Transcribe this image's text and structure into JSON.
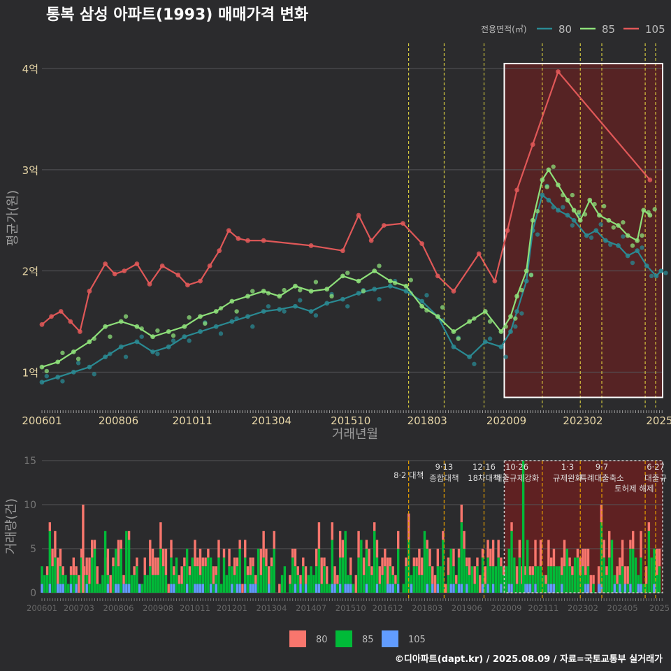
{
  "title": "통복 삼성 아파트(1993) 매매가격 변화",
  "legend_title": "전용면적(㎡)",
  "footer": "©디아파트(dapt.kr) / 2025.08.09 / 자료=국토교통부 실거래가",
  "colors": {
    "s80": "#2a8a93",
    "s85": "#8ee07a",
    "s105": "#e05858",
    "bar80": "#f8766d",
    "bar85": "#00ba38",
    "bar105": "#619cff",
    "policy": "#f0e442",
    "highlight": "#8b1a1a"
  },
  "chart_data": [
    {
      "type": "line",
      "title": "통복 삼성 아파트(1993) 매매가격 변화",
      "xlabel": "거래년월",
      "ylabel": "평균가(원)",
      "x_range": [
        2006.0,
        2025.6
      ],
      "ylim": [
        0.65,
        4.25
      ],
      "y_ticks": [
        {
          "v": 1,
          "label": "1억"
        },
        {
          "v": 2,
          "label": "2억"
        },
        {
          "v": 3,
          "label": "3억"
        },
        {
          "v": 4,
          "label": "4억"
        }
      ],
      "x_ticks": [
        {
          "v": 2006.0,
          "label": "200601"
        },
        {
          "v": 2008.417,
          "label": "200806"
        },
        {
          "v": 2010.75,
          "label": "201011"
        },
        {
          "v": 2013.25,
          "label": "201304"
        },
        {
          "v": 2015.75,
          "label": "201510"
        },
        {
          "v": 2018.167,
          "label": "201803"
        },
        {
          "v": 2020.667,
          "label": "202009"
        },
        {
          "v": 2023.083,
          "label": "202302"
        },
        {
          "v": 2025.5,
          "label": "2025"
        }
      ],
      "policy_lines": [
        2017.58,
        2018.7,
        2019.96,
        2021.8,
        2023.0,
        2023.68,
        2025.05,
        2025.38
      ],
      "highlight_range": [
        2020.6,
        2025.6
      ],
      "highlight_y": [
        0.75,
        4.05
      ],
      "series": [
        {
          "name": "80",
          "x": [
            2006.0,
            2006.5,
            2007.0,
            2007.5,
            2008.0,
            2008.5,
            2009.0,
            2009.5,
            2010.0,
            2010.5,
            2011.0,
            2011.5,
            2012.0,
            2012.5,
            2013.0,
            2013.5,
            2014.0,
            2014.5,
            2015.0,
            2015.5,
            2016.0,
            2016.5,
            2017.0,
            2017.5,
            2018.0,
            2018.5,
            2019.0,
            2019.5,
            2020.0,
            2020.5,
            2020.8,
            2021.0,
            2021.3,
            2021.5,
            2021.8,
            2022.0,
            2022.3,
            2022.6,
            2022.8,
            2023.2,
            2023.5,
            2023.8,
            2024.2,
            2024.5,
            2024.8,
            2025.1,
            2025.4,
            2025.55
          ],
          "values": [
            0.9,
            0.95,
            1.0,
            1.05,
            1.15,
            1.25,
            1.3,
            1.2,
            1.25,
            1.35,
            1.4,
            1.45,
            1.5,
            1.55,
            1.6,
            1.62,
            1.65,
            1.6,
            1.68,
            1.72,
            1.78,
            1.82,
            1.85,
            1.8,
            1.7,
            1.55,
            1.25,
            1.15,
            1.3,
            1.25,
            1.4,
            1.6,
            1.9,
            2.4,
            2.75,
            2.7,
            2.6,
            2.55,
            2.5,
            2.35,
            2.4,
            2.3,
            2.25,
            2.15,
            2.2,
            2.05,
            1.95,
            2.0
          ]
        },
        {
          "name": "85",
          "x": [
            2006.0,
            2006.5,
            2007.0,
            2007.5,
            2008.0,
            2008.5,
            2009.0,
            2009.5,
            2010.0,
            2010.5,
            2011.0,
            2011.5,
            2012.0,
            2012.5,
            2013.0,
            2013.5,
            2014.0,
            2014.5,
            2015.0,
            2015.5,
            2016.0,
            2016.5,
            2017.0,
            2017.5,
            2018.0,
            2018.5,
            2019.0,
            2019.5,
            2020.0,
            2020.5,
            2020.8,
            2021.0,
            2021.3,
            2021.5,
            2021.8,
            2022.0,
            2022.3,
            2022.6,
            2022.8,
            2023.0,
            2023.3,
            2023.6,
            2023.9,
            2024.2,
            2024.5,
            2024.8,
            2025.0,
            2025.2
          ],
          "values": [
            1.05,
            1.1,
            1.2,
            1.3,
            1.45,
            1.5,
            1.45,
            1.35,
            1.4,
            1.45,
            1.55,
            1.6,
            1.7,
            1.75,
            1.8,
            1.75,
            1.85,
            1.8,
            1.82,
            1.95,
            1.9,
            2.0,
            1.9,
            1.85,
            1.65,
            1.55,
            1.4,
            1.5,
            1.6,
            1.4,
            1.55,
            1.75,
            2.0,
            2.5,
            2.9,
            3.0,
            2.85,
            2.7,
            2.6,
            2.5,
            2.7,
            2.55,
            2.5,
            2.45,
            2.35,
            2.3,
            2.6,
            2.55
          ]
        },
        {
          "name": "105",
          "x": [
            2006.0,
            2006.3,
            2006.6,
            2006.9,
            2007.2,
            2007.5,
            2008.0,
            2008.3,
            2008.6,
            2009.0,
            2009.4,
            2009.8,
            2010.3,
            2010.6,
            2011.0,
            2011.3,
            2011.6,
            2011.9,
            2012.2,
            2012.5,
            2013.0,
            2014.5,
            2015.5,
            2016.0,
            2016.4,
            2016.8,
            2017.4,
            2018.0,
            2018.5,
            2019.0,
            2019.8,
            2020.3,
            2020.7,
            2021.0,
            2021.5,
            2022.3,
            2025.2
          ],
          "values": [
            1.47,
            1.55,
            1.6,
            1.5,
            1.4,
            1.8,
            2.07,
            1.97,
            2.0,
            2.07,
            1.87,
            2.05,
            1.96,
            1.86,
            1.9,
            2.05,
            2.2,
            2.4,
            2.32,
            2.3,
            2.3,
            2.25,
            2.2,
            2.55,
            2.3,
            2.45,
            2.47,
            2.27,
            1.95,
            1.8,
            2.17,
            1.9,
            2.4,
            2.8,
            3.25,
            3.97,
            2.9
          ]
        }
      ]
    },
    {
      "type": "bar",
      "ylabel": "거래량(건)",
      "ylim": [
        0,
        15
      ],
      "y_ticks": [
        0,
        5,
        10,
        15
      ],
      "x_ticks": [
        {
          "v": 2006.0,
          "label": "200601"
        },
        {
          "v": 2007.167,
          "label": "200703"
        },
        {
          "v": 2008.417,
          "label": "200806"
        },
        {
          "v": 2009.667,
          "label": "200908"
        },
        {
          "v": 2010.833,
          "label": "201011"
        },
        {
          "v": 2012.0,
          "label": "201201"
        },
        {
          "v": 2013.25,
          "label": "201304"
        },
        {
          "v": 2014.5,
          "label": "201407"
        },
        {
          "v": 2015.75,
          "label": "201510"
        },
        {
          "v": 2016.917,
          "label": "201612"
        },
        {
          "v": 2018.167,
          "label": "201803"
        },
        {
          "v": 2019.417,
          "label": "201906"
        },
        {
          "v": 2020.667,
          "label": "202009"
        },
        {
          "v": 2021.833,
          "label": "202111"
        },
        {
          "v": 2023.083,
          "label": "202302"
        },
        {
          "v": 2024.333,
          "label": "202405"
        },
        {
          "v": 2025.5,
          "label": "2025"
        }
      ],
      "annotations": [
        {
          "x": 2017.58,
          "lines": [
            "8·2 대책"
          ]
        },
        {
          "x": 2018.7,
          "lines": [
            "9·13",
            "종합대책"
          ]
        },
        {
          "x": 2019.96,
          "lines": [
            "12·16",
            "18차대책"
          ]
        },
        {
          "x": 2021.0,
          "lines": [
            "10·26",
            "대출규제강화"
          ]
        },
        {
          "x": 2022.6,
          "lines": [
            "1·3",
            "규제완화"
          ]
        },
        {
          "x": 2023.68,
          "lines": [
            "9·7",
            "특례대출축소"
          ]
        },
        {
          "x": 2024.7,
          "lines": [
            "토허제 해제"
          ]
        },
        {
          "x": 2025.38,
          "lines": [
            "6·27",
            "대출규"
          ]
        }
      ],
      "legend": [
        "80",
        "85",
        "105"
      ]
    }
  ]
}
